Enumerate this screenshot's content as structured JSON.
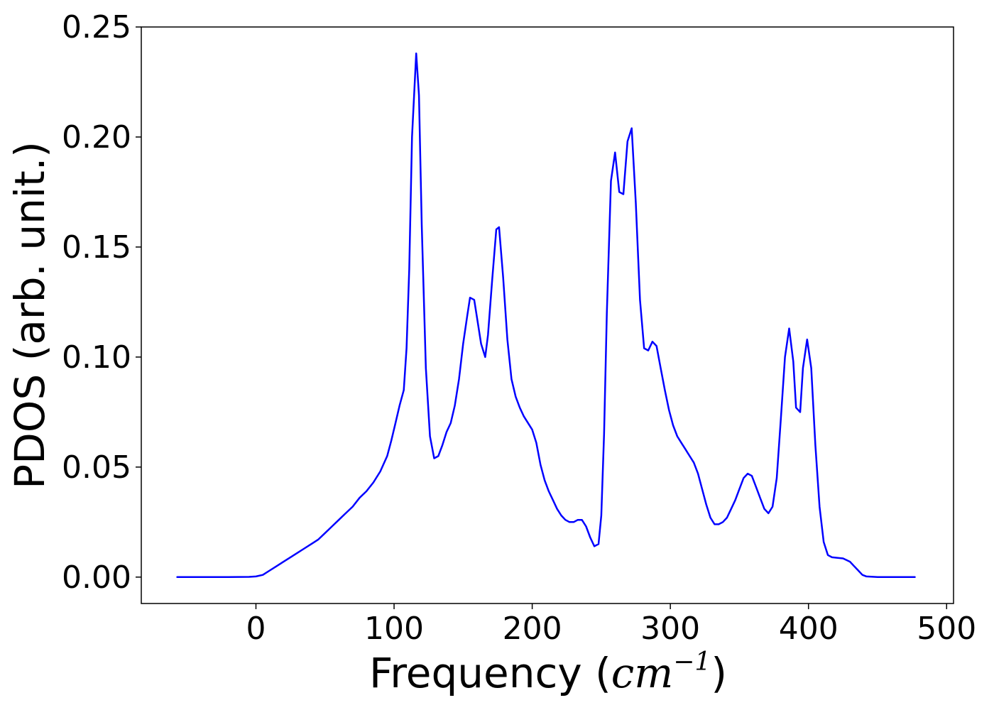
{
  "chart_data": {
    "type": "line",
    "title": "",
    "xlabel": "Frequency (",
    "xlabel_math": "cm",
    "xlabel_sup": "−1",
    "xlabel_end": ")",
    "ylabel": "PDOS (arb. unit.)",
    "xlim": [
      -83,
      505
    ],
    "ylim": [
      -0.012,
      0.25
    ],
    "x_ticks": [
      0,
      100,
      200,
      300,
      400,
      500
    ],
    "x_tick_labels": [
      "0",
      "100",
      "200",
      "300",
      "400",
      "500"
    ],
    "y_ticks": [
      0.0,
      0.05,
      0.1,
      0.15,
      0.2,
      0.25
    ],
    "y_tick_labels": [
      "0.00",
      "0.05",
      "0.10",
      "0.15",
      "0.20",
      "0.25"
    ],
    "grid": false,
    "legend": "none",
    "series": [
      {
        "color": "#0000ff",
        "points": [
          [
            -57,
            0.0
          ],
          [
            -20,
            0.0
          ],
          [
            -5,
            0.0001
          ],
          [
            0,
            0.0003
          ],
          [
            5,
            0.001
          ],
          [
            10,
            0.003
          ],
          [
            15,
            0.005
          ],
          [
            20,
            0.007
          ],
          [
            25,
            0.009
          ],
          [
            30,
            0.011
          ],
          [
            35,
            0.013
          ],
          [
            40,
            0.015
          ],
          [
            45,
            0.017
          ],
          [
            50,
            0.02
          ],
          [
            55,
            0.023
          ],
          [
            60,
            0.026
          ],
          [
            65,
            0.029
          ],
          [
            70,
            0.032
          ],
          [
            75,
            0.036
          ],
          [
            80,
            0.039
          ],
          [
            85,
            0.043
          ],
          [
            90,
            0.048
          ],
          [
            95,
            0.055
          ],
          [
            98,
            0.062
          ],
          [
            101,
            0.07
          ],
          [
            104,
            0.078
          ],
          [
            107,
            0.085
          ],
          [
            109,
            0.104
          ],
          [
            111,
            0.14
          ],
          [
            113,
            0.2
          ],
          [
            116,
            0.238
          ],
          [
            118,
            0.219
          ],
          [
            120,
            0.16
          ],
          [
            123,
            0.095
          ],
          [
            126,
            0.064
          ],
          [
            129,
            0.054
          ],
          [
            132,
            0.055
          ],
          [
            135,
            0.06
          ],
          [
            138,
            0.066
          ],
          [
            141,
            0.07
          ],
          [
            144,
            0.078
          ],
          [
            147,
            0.09
          ],
          [
            150,
            0.106
          ],
          [
            153,
            0.119
          ],
          [
            155,
            0.127
          ],
          [
            158,
            0.126
          ],
          [
            160,
            0.118
          ],
          [
            163,
            0.106
          ],
          [
            166,
            0.1
          ],
          [
            168,
            0.11
          ],
          [
            171,
            0.135
          ],
          [
            174,
            0.158
          ],
          [
            176,
            0.159
          ],
          [
            179,
            0.136
          ],
          [
            182,
            0.108
          ],
          [
            185,
            0.09
          ],
          [
            188,
            0.082
          ],
          [
            191,
            0.077
          ],
          [
            194,
            0.073
          ],
          [
            197,
            0.07
          ],
          [
            200,
            0.067
          ],
          [
            203,
            0.061
          ],
          [
            206,
            0.051
          ],
          [
            209,
            0.044
          ],
          [
            212,
            0.039
          ],
          [
            215,
            0.035
          ],
          [
            218,
            0.031
          ],
          [
            221,
            0.028
          ],
          [
            224,
            0.026
          ],
          [
            227,
            0.025
          ],
          [
            230,
            0.025
          ],
          [
            233,
            0.026
          ],
          [
            236,
            0.026
          ],
          [
            239,
            0.023
          ],
          [
            242,
            0.018
          ],
          [
            245,
            0.014
          ],
          [
            248,
            0.015
          ],
          [
            250,
            0.028
          ],
          [
            252,
            0.065
          ],
          [
            254,
            0.12
          ],
          [
            257,
            0.18
          ],
          [
            260,
            0.193
          ],
          [
            263,
            0.175
          ],
          [
            266,
            0.174
          ],
          [
            269,
            0.198
          ],
          [
            272,
            0.204
          ],
          [
            275,
            0.17
          ],
          [
            278,
            0.126
          ],
          [
            281,
            0.104
          ],
          [
            284,
            0.103
          ],
          [
            287,
            0.107
          ],
          [
            290,
            0.105
          ],
          [
            293,
            0.095
          ],
          [
            296,
            0.085
          ],
          [
            299,
            0.076
          ],
          [
            302,
            0.069
          ],
          [
            305,
            0.064
          ],
          [
            308,
            0.061
          ],
          [
            311,
            0.058
          ],
          [
            314,
            0.055
          ],
          [
            317,
            0.052
          ],
          [
            320,
            0.047
          ],
          [
            323,
            0.04
          ],
          [
            326,
            0.033
          ],
          [
            329,
            0.027
          ],
          [
            332,
            0.024
          ],
          [
            335,
            0.024
          ],
          [
            338,
            0.025
          ],
          [
            341,
            0.027
          ],
          [
            344,
            0.031
          ],
          [
            347,
            0.035
          ],
          [
            350,
            0.04
          ],
          [
            353,
            0.045
          ],
          [
            356,
            0.047
          ],
          [
            359,
            0.046
          ],
          [
            362,
            0.041
          ],
          [
            365,
            0.036
          ],
          [
            368,
            0.031
          ],
          [
            371,
            0.029
          ],
          [
            374,
            0.032
          ],
          [
            377,
            0.045
          ],
          [
            380,
            0.072
          ],
          [
            383,
            0.1
          ],
          [
            386,
            0.113
          ],
          [
            389,
            0.098
          ],
          [
            391,
            0.077
          ],
          [
            394,
            0.075
          ],
          [
            396,
            0.095
          ],
          [
            399,
            0.108
          ],
          [
            402,
            0.095
          ],
          [
            405,
            0.06
          ],
          [
            408,
            0.032
          ],
          [
            411,
            0.016
          ],
          [
            414,
            0.01
          ],
          [
            417,
            0.009
          ],
          [
            420,
            0.0088
          ],
          [
            425,
            0.0085
          ],
          [
            430,
            0.007
          ],
          [
            433,
            0.005
          ],
          [
            436,
            0.003
          ],
          [
            439,
            0.001
          ],
          [
            442,
            0.0003
          ],
          [
            450,
            0.0
          ],
          [
            477,
            0.0
          ]
        ]
      }
    ]
  }
}
